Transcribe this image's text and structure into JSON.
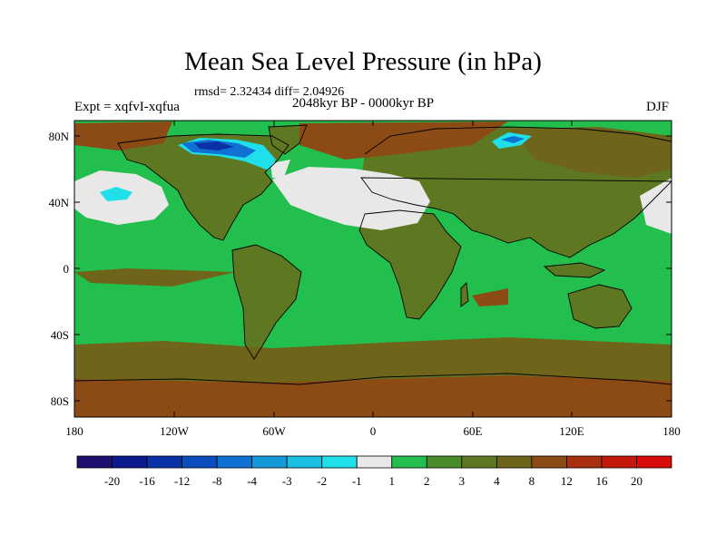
{
  "title": "Mean Sea Level Pressure (in hPa)",
  "stats": "rmsd= 2.32434  diff= 2.04926",
  "experiment": "Expt = xqfvI-xqfua",
  "period": "2048kyr BP - 0000kyr BP",
  "season": "DJF",
  "lat_ticks": [
    "80N",
    "40N",
    "0",
    "40S",
    "80S"
  ],
  "lon_ticks": [
    "180",
    "120W",
    "60W",
    "0",
    "60E",
    "120E",
    "180"
  ],
  "colorbar": {
    "labels": [
      "-20",
      "-16",
      "-12",
      "-8",
      "-4",
      "-3",
      "-2",
      "-1",
      "1",
      "2",
      "3",
      "4",
      "8",
      "12",
      "16",
      "20"
    ],
    "colors": [
      "#1e0f6e",
      "#0c1a8c",
      "#0a32a6",
      "#0a4ec0",
      "#0f72d2",
      "#149ad8",
      "#1bbfe2",
      "#1fe0ea",
      "#e8e8e8",
      "#22bf4e",
      "#4a8c2a",
      "#5e7822",
      "#6e641a",
      "#8c4a14",
      "#a8300e",
      "#c4180a",
      "#d80a0a"
    ]
  },
  "map_colors": {
    "ocean": "#22bf4e",
    "land": "#5e7822",
    "high": "#6e641a",
    "warm": "#8c4a14",
    "neutral": "#e8e8e8",
    "low": "#1fe0ea",
    "lower": "#0f72d2",
    "lowest": "#0a32a6",
    "coast": "#000000"
  }
}
